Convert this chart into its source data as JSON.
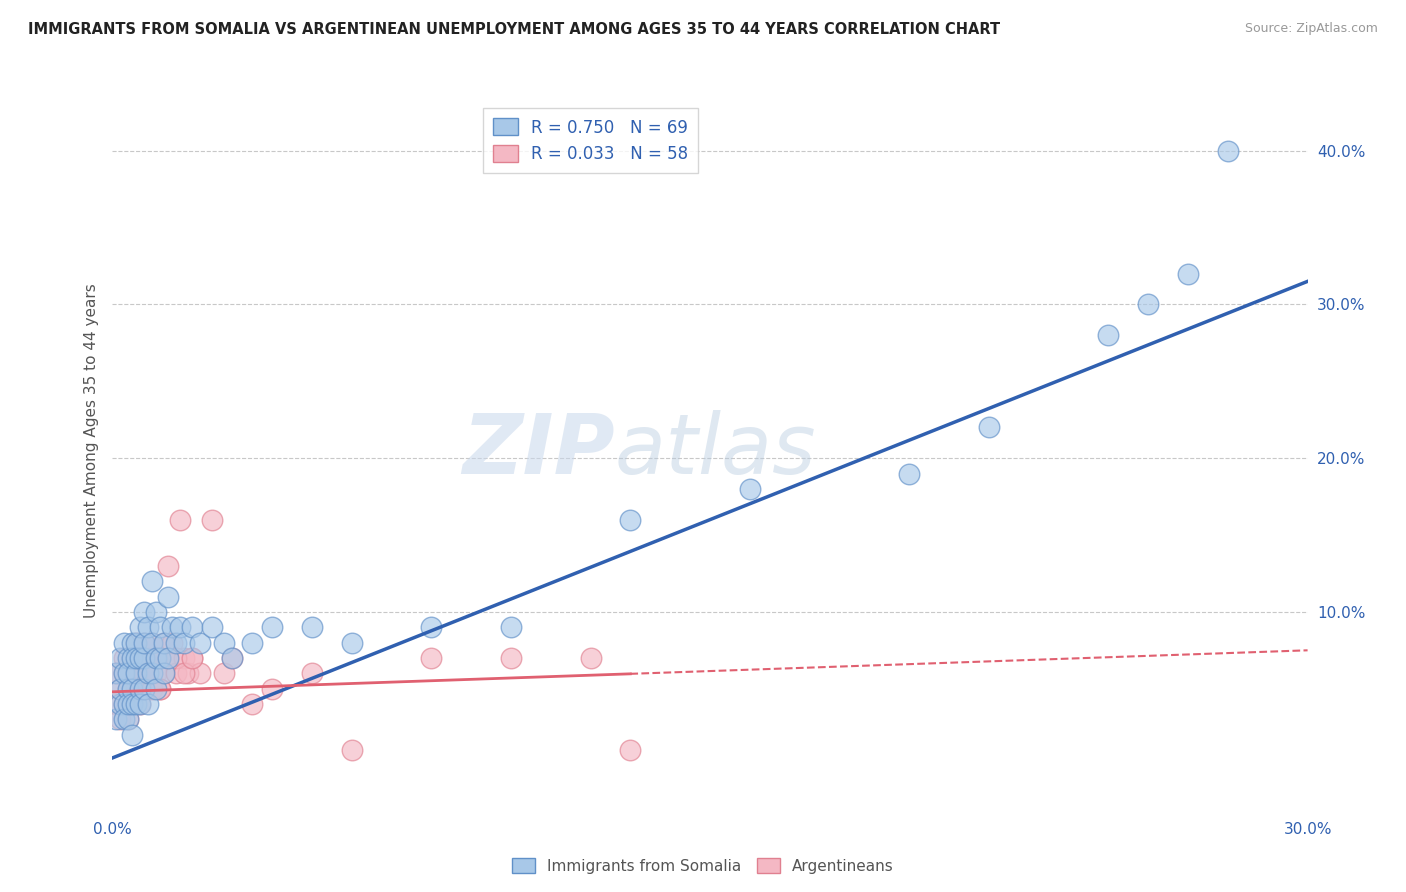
{
  "title": "IMMIGRANTS FROM SOMALIA VS ARGENTINEAN UNEMPLOYMENT AMONG AGES 35 TO 44 YEARS CORRELATION CHART",
  "source": "Source: ZipAtlas.com",
  "ylabel": "Unemployment Among Ages 35 to 44 years",
  "xlim": [
    0.0,
    0.3
  ],
  "ylim": [
    -0.03,
    0.44
  ],
  "xticks": [
    0.0,
    0.05,
    0.1,
    0.15,
    0.2,
    0.25,
    0.3
  ],
  "yticks_right": [
    0.0,
    0.1,
    0.2,
    0.3,
    0.4
  ],
  "somalia_color": "#a8c8e8",
  "argentina_color": "#f4b8c4",
  "somalia_edge": "#6090c8",
  "argentina_edge": "#e08090",
  "trend_somalia_color": "#3060b0",
  "trend_argentina_color": "#e06070",
  "R_somalia": 0.75,
  "N_somalia": 69,
  "R_argentina": 0.033,
  "N_argentina": 58,
  "trend_somalia": [
    0.005,
    0.315
  ],
  "trend_argentina": [
    0.048,
    0.075
  ],
  "somalia_x": [
    0.001,
    0.001,
    0.002,
    0.002,
    0.002,
    0.003,
    0.003,
    0.003,
    0.003,
    0.004,
    0.004,
    0.004,
    0.004,
    0.004,
    0.005,
    0.005,
    0.005,
    0.005,
    0.005,
    0.006,
    0.006,
    0.006,
    0.006,
    0.007,
    0.007,
    0.007,
    0.007,
    0.008,
    0.008,
    0.008,
    0.008,
    0.009,
    0.009,
    0.009,
    0.01,
    0.01,
    0.01,
    0.011,
    0.011,
    0.011,
    0.012,
    0.012,
    0.013,
    0.013,
    0.014,
    0.014,
    0.015,
    0.016,
    0.017,
    0.018,
    0.02,
    0.022,
    0.025,
    0.028,
    0.03,
    0.035,
    0.04,
    0.05,
    0.06,
    0.08,
    0.1,
    0.13,
    0.16,
    0.2,
    0.22,
    0.25,
    0.26,
    0.27,
    0.28
  ],
  "somalia_y": [
    0.03,
    0.06,
    0.04,
    0.07,
    0.05,
    0.04,
    0.06,
    0.03,
    0.08,
    0.05,
    0.07,
    0.03,
    0.06,
    0.04,
    0.08,
    0.05,
    0.07,
    0.04,
    0.02,
    0.06,
    0.08,
    0.04,
    0.07,
    0.09,
    0.05,
    0.07,
    0.04,
    0.1,
    0.07,
    0.05,
    0.08,
    0.09,
    0.06,
    0.04,
    0.12,
    0.08,
    0.06,
    0.1,
    0.07,
    0.05,
    0.09,
    0.07,
    0.08,
    0.06,
    0.11,
    0.07,
    0.09,
    0.08,
    0.09,
    0.08,
    0.09,
    0.08,
    0.09,
    0.08,
    0.07,
    0.08,
    0.09,
    0.09,
    0.08,
    0.09,
    0.09,
    0.16,
    0.18,
    0.19,
    0.22,
    0.28,
    0.3,
    0.32,
    0.4
  ],
  "argentina_x": [
    0.001,
    0.001,
    0.002,
    0.002,
    0.003,
    0.003,
    0.003,
    0.004,
    0.004,
    0.004,
    0.005,
    0.005,
    0.005,
    0.006,
    0.006,
    0.006,
    0.007,
    0.007,
    0.007,
    0.008,
    0.008,
    0.008,
    0.009,
    0.009,
    0.01,
    0.01,
    0.011,
    0.011,
    0.012,
    0.012,
    0.013,
    0.013,
    0.014,
    0.015,
    0.016,
    0.017,
    0.018,
    0.019,
    0.02,
    0.022,
    0.025,
    0.028,
    0.03,
    0.035,
    0.04,
    0.05,
    0.06,
    0.08,
    0.1,
    0.12,
    0.014,
    0.016,
    0.018,
    0.02,
    0.012,
    0.008,
    0.006,
    0.13
  ],
  "argentina_y": [
    0.04,
    0.06,
    0.05,
    0.03,
    0.06,
    0.04,
    0.07,
    0.05,
    0.03,
    0.06,
    0.07,
    0.04,
    0.05,
    0.08,
    0.05,
    0.06,
    0.07,
    0.05,
    0.04,
    0.08,
    0.06,
    0.05,
    0.07,
    0.06,
    0.08,
    0.05,
    0.07,
    0.06,
    0.07,
    0.05,
    0.08,
    0.06,
    0.07,
    0.08,
    0.06,
    0.16,
    0.07,
    0.06,
    0.07,
    0.06,
    0.16,
    0.06,
    0.07,
    0.04,
    0.05,
    0.06,
    0.01,
    0.07,
    0.07,
    0.07,
    0.13,
    0.07,
    0.06,
    0.07,
    0.05,
    0.06,
    0.07,
    0.01
  ],
  "watermark_zip": "ZIP",
  "watermark_atlas": "atlas",
  "background_color": "#ffffff",
  "grid_color": "#c8c8c8"
}
